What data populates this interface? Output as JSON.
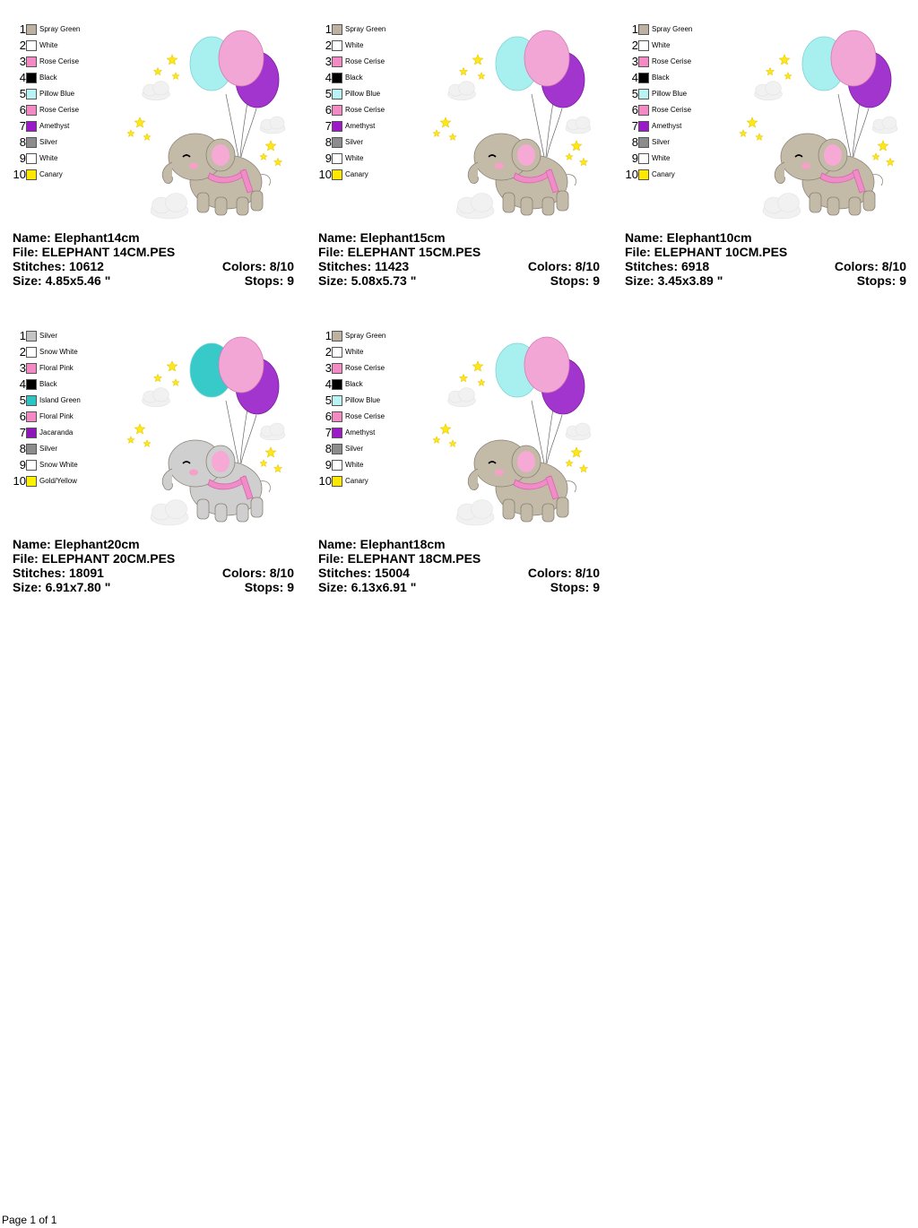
{
  "designs": [
    {
      "id": "elephant14",
      "name_line": "Name: Elephant14cm",
      "file_line": "File: ELEPHANT 14CM.PES",
      "stitches_line": "Stitches: 10612",
      "colors_line": "Colors: 8/10",
      "size_line": "Size: 4.85x5.46 \"",
      "stops_line": "Stops: 9",
      "body_color": "#c4baa8",
      "balloon_colors": [
        "#a8f0f0",
        "#f2a6d6",
        "#a335cf"
      ],
      "colors": [
        {
          "n": "1",
          "name": "Spray Green",
          "hex": "#bdb2a2"
        },
        {
          "n": "2",
          "name": "White",
          "hex": "#ffffff"
        },
        {
          "n": "3",
          "name": "Rose Cerise",
          "hex": "#f38ac3"
        },
        {
          "n": "4",
          "name": "Black",
          "hex": "#000000"
        },
        {
          "n": "5",
          "name": "Pillow Blue",
          "hex": "#b9f3f3"
        },
        {
          "n": "6",
          "name": "Rose Cerise",
          "hex": "#f38ac3"
        },
        {
          "n": "7",
          "name": "Amethyst",
          "hex": "#9b19c6"
        },
        {
          "n": "8",
          "name": "Silver",
          "hex": "#8c8c8c"
        },
        {
          "n": "9",
          "name": "White",
          "hex": "#ffffff"
        },
        {
          "n": "10",
          "name": "Canary",
          "hex": "#ffe800"
        }
      ]
    },
    {
      "id": "elephant15",
      "name_line": "Name: Elephant15cm",
      "file_line": "File: ELEPHANT 15CM.PES",
      "stitches_line": "Stitches: 11423",
      "colors_line": "Colors: 8/10",
      "size_line": "Size: 5.08x5.73 \"",
      "stops_line": "Stops: 9",
      "body_color": "#c4baa8",
      "balloon_colors": [
        "#a8f0f0",
        "#f2a6d6",
        "#a335cf"
      ],
      "colors": [
        {
          "n": "1",
          "name": "Spray Green",
          "hex": "#bdb2a2"
        },
        {
          "n": "2",
          "name": "White",
          "hex": "#ffffff"
        },
        {
          "n": "3",
          "name": "Rose Cerise",
          "hex": "#f38ac3"
        },
        {
          "n": "4",
          "name": "Black",
          "hex": "#000000"
        },
        {
          "n": "5",
          "name": "Pillow Blue",
          "hex": "#b9f3f3"
        },
        {
          "n": "6",
          "name": "Rose Cerise",
          "hex": "#f38ac3"
        },
        {
          "n": "7",
          "name": "Amethyst",
          "hex": "#9b19c6"
        },
        {
          "n": "8",
          "name": "Silver",
          "hex": "#8c8c8c"
        },
        {
          "n": "9",
          "name": "White",
          "hex": "#ffffff"
        },
        {
          "n": "10",
          "name": "Canary",
          "hex": "#ffe800"
        }
      ]
    },
    {
      "id": "elephant10",
      "name_line": "Name: Elephant10cm",
      "file_line": "File: ELEPHANT 10CM.PES",
      "stitches_line": "Stitches: 6918",
      "colors_line": "Colors: 8/10",
      "size_line": "Size: 3.45x3.89 \"",
      "stops_line": "Stops: 9",
      "body_color": "#c4baa8",
      "balloon_colors": [
        "#a8f0f0",
        "#f2a6d6",
        "#a335cf"
      ],
      "colors": [
        {
          "n": "1",
          "name": "Spray Green",
          "hex": "#bdb2a2"
        },
        {
          "n": "2",
          "name": "White",
          "hex": "#ffffff"
        },
        {
          "n": "3",
          "name": "Rose Cerise",
          "hex": "#f38ac3"
        },
        {
          "n": "4",
          "name": "Black",
          "hex": "#000000"
        },
        {
          "n": "5",
          "name": "Pillow Blue",
          "hex": "#b9f3f3"
        },
        {
          "n": "6",
          "name": "Rose Cerise",
          "hex": "#f38ac3"
        },
        {
          "n": "7",
          "name": "Amethyst",
          "hex": "#9b19c6"
        },
        {
          "n": "8",
          "name": "Silver",
          "hex": "#8c8c8c"
        },
        {
          "n": "9",
          "name": "White",
          "hex": "#ffffff"
        },
        {
          "n": "10",
          "name": "Canary",
          "hex": "#ffe800"
        }
      ]
    },
    {
      "id": "elephant20",
      "name_line": "Name: Elephant20cm",
      "file_line": "File: ELEPHANT 20CM.PES",
      "stitches_line": "Stitches: 18091",
      "colors_line": "Colors: 8/10",
      "size_line": "Size: 6.91x7.80 \"",
      "stops_line": "Stops: 9",
      "body_color": "#cfcfcf",
      "balloon_colors": [
        "#38c9c9",
        "#f2a6d6",
        "#a335cf"
      ],
      "colors": [
        {
          "n": "1",
          "name": "Silver",
          "hex": "#c4c4c4"
        },
        {
          "n": "2",
          "name": "Snow White",
          "hex": "#ffffff"
        },
        {
          "n": "3",
          "name": "Floral Pink",
          "hex": "#f38ac3"
        },
        {
          "n": "4",
          "name": "Black",
          "hex": "#000000"
        },
        {
          "n": "5",
          "name": "Island Green",
          "hex": "#2ec4c4"
        },
        {
          "n": "6",
          "name": "Floral Pink",
          "hex": "#f38ac3"
        },
        {
          "n": "7",
          "name": "Jacaranda",
          "hex": "#8e16b8"
        },
        {
          "n": "8",
          "name": "Silver",
          "hex": "#8c8c8c"
        },
        {
          "n": "9",
          "name": "Snow White",
          "hex": "#ffffff"
        },
        {
          "n": "10",
          "name": "Gold/Yellow",
          "hex": "#fff200"
        }
      ]
    },
    {
      "id": "elephant18",
      "name_line": "Name: Elephant18cm",
      "file_line": "File: ELEPHANT 18CM.PES",
      "stitches_line": "Stitches: 15004",
      "colors_line": "Colors: 8/10",
      "size_line": "Size: 6.13x6.91 \"",
      "stops_line": "Stops: 9",
      "body_color": "#c4baa8",
      "balloon_colors": [
        "#a8f0f0",
        "#f2a6d6",
        "#a335cf"
      ],
      "colors": [
        {
          "n": "1",
          "name": "Spray Green",
          "hex": "#bdb2a2"
        },
        {
          "n": "2",
          "name": "White",
          "hex": "#ffffff"
        },
        {
          "n": "3",
          "name": "Rose Cerise",
          "hex": "#f38ac3"
        },
        {
          "n": "4",
          "name": "Black",
          "hex": "#000000"
        },
        {
          "n": "5",
          "name": "Pillow Blue",
          "hex": "#b9f3f3"
        },
        {
          "n": "6",
          "name": "Rose Cerise",
          "hex": "#f38ac3"
        },
        {
          "n": "7",
          "name": "Amethyst",
          "hex": "#9b19c6"
        },
        {
          "n": "8",
          "name": "Silver",
          "hex": "#8c8c8c"
        },
        {
          "n": "9",
          "name": "White",
          "hex": "#ffffff"
        },
        {
          "n": "10",
          "name": "Canary",
          "hex": "#ffe800"
        }
      ]
    }
  ],
  "footer": {
    "page_text": "Page 1 of 1"
  }
}
